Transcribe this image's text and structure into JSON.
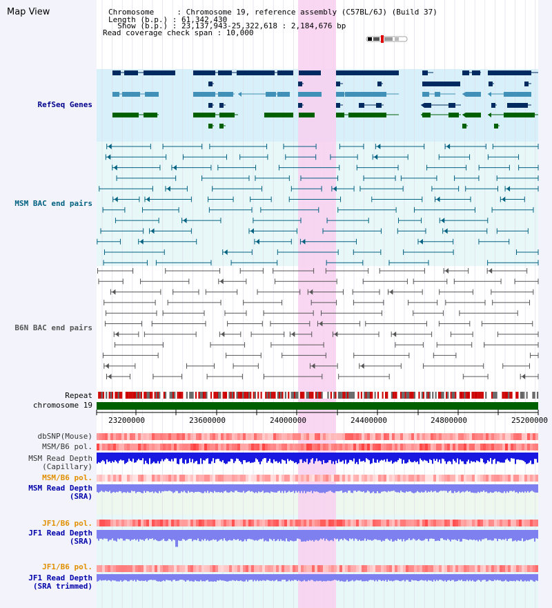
{
  "page_title": "Map View",
  "header": {
    "chromosome_line": "Chromosome     : Chromosome 19, reference assembly (C57BL/6J) (Build 37)",
    "length_line": "Length (b.p.) : 61,342,430",
    "show_line": "  Show (b.p.) : 23,137,943-25,322,618 : 2,184,676 bp",
    "coverage_line": "Read coverage check span : 10,000"
  },
  "tracks": {
    "refseq": {
      "label": "RefSeq Genes",
      "color": "#00008b"
    },
    "msm_bac": {
      "label": "MSM BAC end pairs",
      "color": "#006080"
    },
    "b6n_bac": {
      "label": "B6N BAC end pairs",
      "color": "#555555"
    },
    "repeat": {
      "label": "Repeat",
      "color": "#000000"
    },
    "chromosome": {
      "label": "chromosome 19",
      "color": "#000000"
    },
    "dbsnp": {
      "label": "dbSNP(Mouse)",
      "color": "#333333"
    },
    "msm_b6_pol_1": {
      "label": "MSM/B6 pol.",
      "color": "#333333"
    },
    "msm_depth_cap": {
      "label_1": "MSM Read Depth",
      "label_2": "(Capillary)",
      "color": "#333333"
    },
    "msm_b6_pol_2": {
      "label": "MSM/B6 pol.",
      "color": "#e09000"
    },
    "msm_depth_sra": {
      "label_1": "MSM Read Depth",
      "label_2": "(SRA)",
      "color": "#0000aa"
    },
    "jf1_b6_pol_1": {
      "label": "JF1/B6 pol.",
      "color": "#e09000"
    },
    "jf1_depth_sra": {
      "label_1": "JF1 Read Depth",
      "label_2": "(SRA)",
      "color": "#0000aa"
    },
    "jf1_b6_pol_2": {
      "label": "JF1/B6 pol.",
      "color": "#e09000"
    },
    "jf1_depth_trim": {
      "label_1": "JF1 Read Depth",
      "label_2": "(SRA trimmed)",
      "color": "#0000aa"
    }
  },
  "axis_ticks": [
    "23200000",
    "23600000",
    "24000000",
    "24400000",
    "24800000",
    "25200000"
  ],
  "colors": {
    "highlight": "#f8d0f0",
    "refseq_bg": "#d8f0fa",
    "bac_bg": "#e8f8f8",
    "gene_dark": "#002a60",
    "gene_mid": "#4090b8",
    "gene_green": "#006000",
    "chromosome_bar": "#006000"
  }
}
